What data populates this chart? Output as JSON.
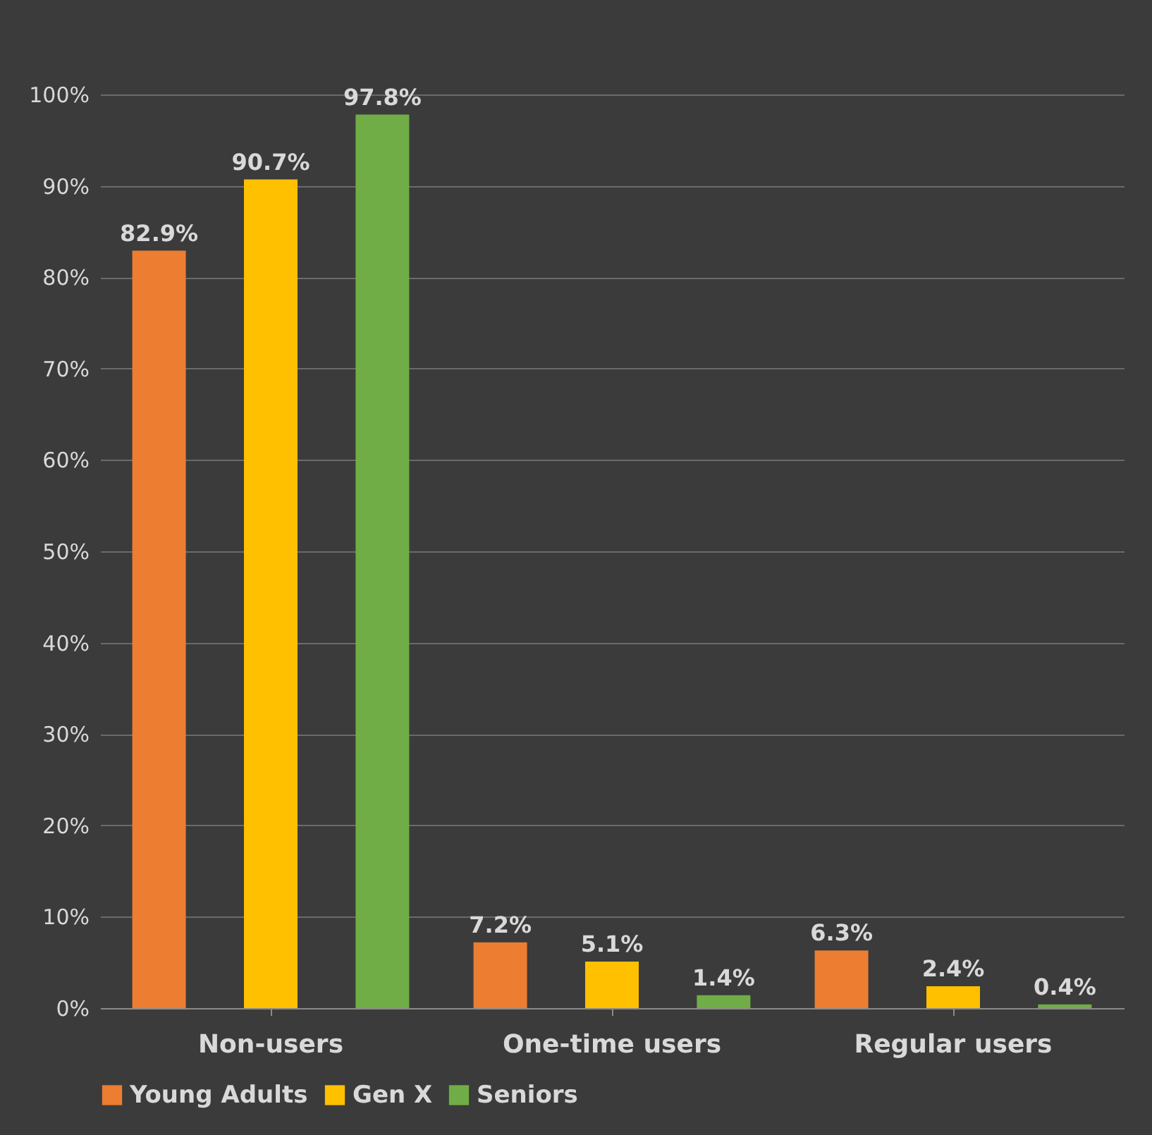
{
  "chart_data": {
    "type": "bar",
    "categories": [
      "Non-users",
      "One-time users",
      "Regular users"
    ],
    "series": [
      {
        "name": "Young Adults",
        "color": "#ed7d31",
        "values": [
          82.9,
          7.2,
          6.3
        ],
        "value_labels": [
          "82.9%",
          "7.2%",
          "6.3%"
        ]
      },
      {
        "name": "Gen X",
        "color": "#ffc000",
        "values": [
          90.7,
          5.1,
          2.4
        ],
        "value_labels": [
          "90.7%",
          "5.1%",
          "2.4%"
        ]
      },
      {
        "name": "Seniors",
        "color": "#70ad47",
        "values": [
          97.8,
          1.4,
          0.4
        ],
        "value_labels": [
          "97.8%",
          "1.4%",
          "0.4%"
        ]
      }
    ],
    "ylim": [
      0,
      100
    ],
    "yticks": [
      {
        "value": 0,
        "label": "0%"
      },
      {
        "value": 10,
        "label": "10%"
      },
      {
        "value": 20,
        "label": "20%"
      },
      {
        "value": 30,
        "label": "30%"
      },
      {
        "value": 40,
        "label": "40%"
      },
      {
        "value": 50,
        "label": "50%"
      },
      {
        "value": 60,
        "label": "60%"
      },
      {
        "value": 70,
        "label": "70%"
      },
      {
        "value": 80,
        "label": "80%"
      },
      {
        "value": 90,
        "label": "90%"
      },
      {
        "value": 100,
        "label": "100%"
      }
    ],
    "grid": "y",
    "legend": "bottom"
  }
}
